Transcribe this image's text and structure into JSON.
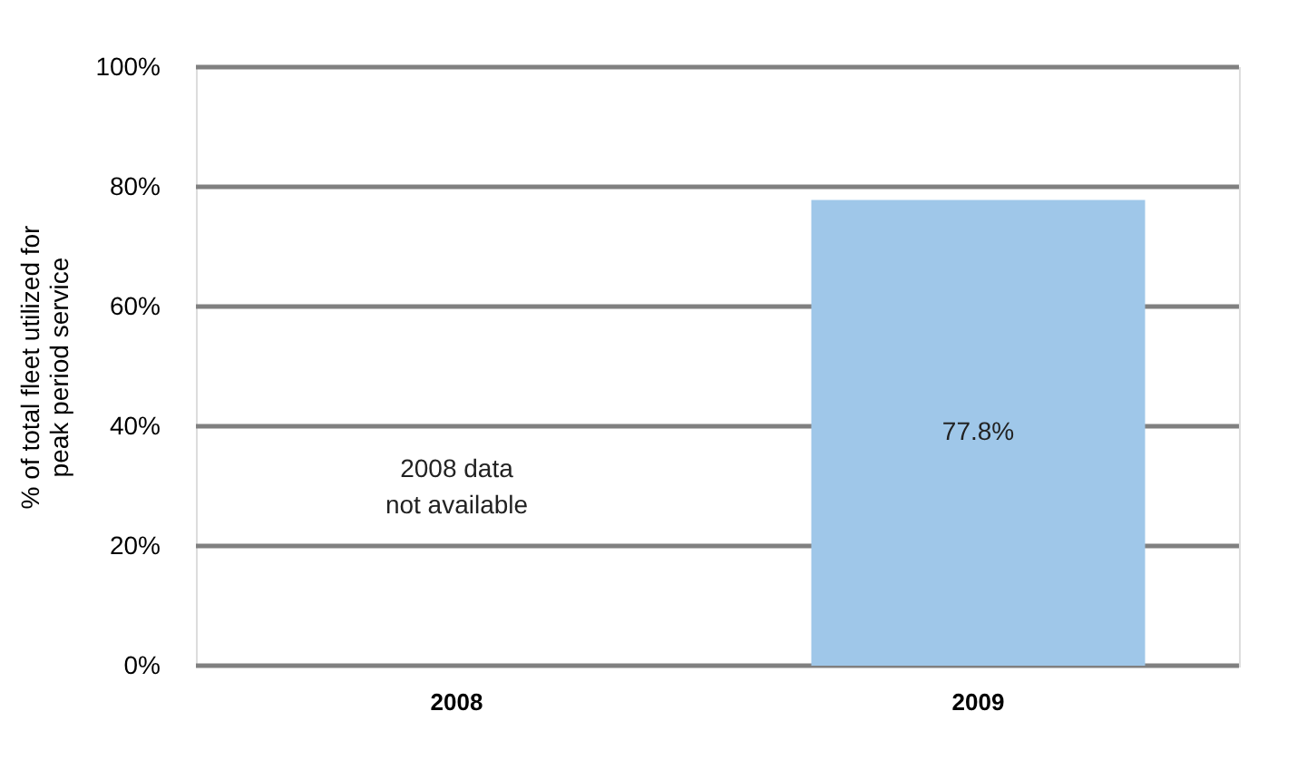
{
  "chart_data": {
    "type": "bar",
    "ylabel": "% of total fleet utilized for\npeak period service",
    "categories": [
      "2008",
      "2009"
    ],
    "values": [
      null,
      77.8
    ],
    "value_labels": [
      null,
      "77.8%"
    ],
    "color": "#9fc7e9",
    "ylim": [
      0,
      100
    ],
    "yticks": [
      {
        "value": 0,
        "label": "0%"
      },
      {
        "value": 20,
        "label": "20%"
      },
      {
        "value": 40,
        "label": "40%"
      },
      {
        "value": 60,
        "label": "60%"
      },
      {
        "value": 80,
        "label": "80%"
      },
      {
        "value": 100,
        "label": "100%"
      }
    ],
    "grid": "y",
    "annotations": [
      "2008 data\nnot available"
    ]
  }
}
